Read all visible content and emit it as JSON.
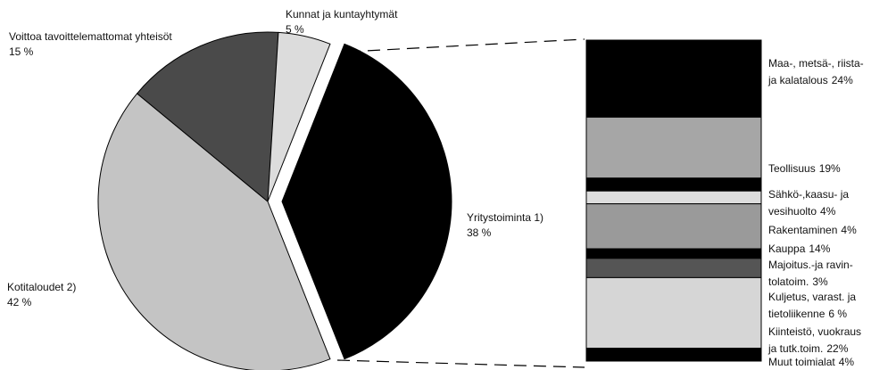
{
  "chart_data": [
    {
      "type": "pie",
      "categories": [
        "Yritystoiminta 1)",
        "Kotitaloudet 2)",
        "Voittoa tavoittelemattomat yhteisöt",
        "Kunnat ja kuntayhtymät"
      ],
      "values": [
        38,
        42,
        15,
        5
      ],
      "value_labels": [
        "38 %",
        "42 %",
        "15 %",
        "5 %"
      ],
      "colors": [
        "#000000",
        "#c4c4c4",
        "#4a4a4a",
        "#dcdcdc"
      ]
    },
    {
      "type": "bar",
      "stacked": true,
      "categories": [
        [
          "Maa-, metsä-, riista-",
          "ja kalatalous"
        ],
        [
          "Teollisuus"
        ],
        [
          "Sähkö-,kaasu- ja",
          "vesihuolto"
        ],
        [
          "Rakentaminen"
        ],
        [
          "Kauppa"
        ],
        [
          "Majoitus.-ja ravin-",
          "tolatoim."
        ],
        [
          "Kuljetus, varast. ja",
          "tietoliikenne"
        ],
        [
          "Kiinteistö, vuokraus",
          "ja tutk.toim."
        ],
        [
          "Muut toimialat"
        ]
      ],
      "values": [
        24,
        19,
        4,
        4,
        14,
        3,
        6,
        22,
        4
      ],
      "value_labels": [
        "24%",
        "19%",
        "4%",
        "4%",
        "14%",
        "3%",
        "6 %",
        "22%",
        "4%"
      ],
      "colors": [
        "#000000",
        "#a6a6a6",
        "#000000",
        "#dddddd",
        "#9a9a9a",
        "#000000",
        "#555555",
        "#d6d6d6",
        "#000000"
      ]
    }
  ]
}
